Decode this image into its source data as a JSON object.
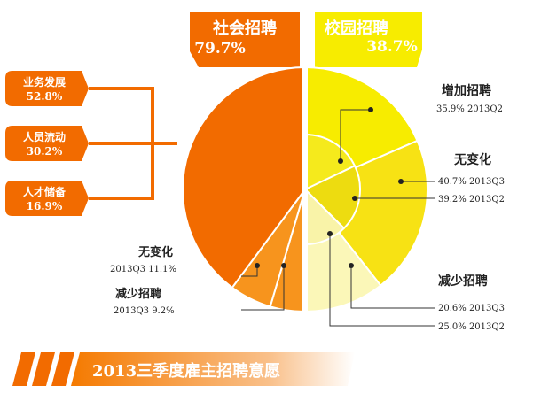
{
  "chart_data": {
    "type": "pie",
    "title": "2013三季度雇主招聘意愿",
    "left_half": {
      "label": "社会招聘",
      "value_text": "79.7%",
      "value": 79.7,
      "color": "#f26b00",
      "slices": [
        {
          "label": "无变化",
          "detail": "2013Q3 11.1%",
          "value": 11.1,
          "color": "#f7941d"
        },
        {
          "label": "减少招聘",
          "detail": "2013Q3 9.2%",
          "value": 9.2,
          "color": "#f7941d"
        }
      ],
      "breakdown": [
        {
          "label": "业务发展",
          "value_text": "52.8%",
          "value": 52.8
        },
        {
          "label": "人员流动",
          "value_text": "30.2%",
          "value": 30.2
        },
        {
          "label": "人才储备",
          "value_text": "16.9%",
          "value": 16.9
        }
      ]
    },
    "right_half": {
      "label": "校园招聘",
      "value_text": "38.7%",
      "value": 38.7,
      "color": "#f7ec00",
      "groups": [
        {
          "label": "增加招聘",
          "items": [
            {
              "text": "35.9% 2013Q2",
              "value": 35.9
            }
          ]
        },
        {
          "label": "无变化",
          "items": [
            {
              "text": "40.7% 2013Q3",
              "value": 40.7
            },
            {
              "text": "39.2% 2013Q2",
              "value": 39.2
            }
          ]
        },
        {
          "label": "减少招聘",
          "items": [
            {
              "text": "20.6% 2013Q3",
              "value": 20.6
            },
            {
              "text": "25.0% 2013Q2",
              "value": 25.0
            }
          ]
        }
      ]
    }
  }
}
